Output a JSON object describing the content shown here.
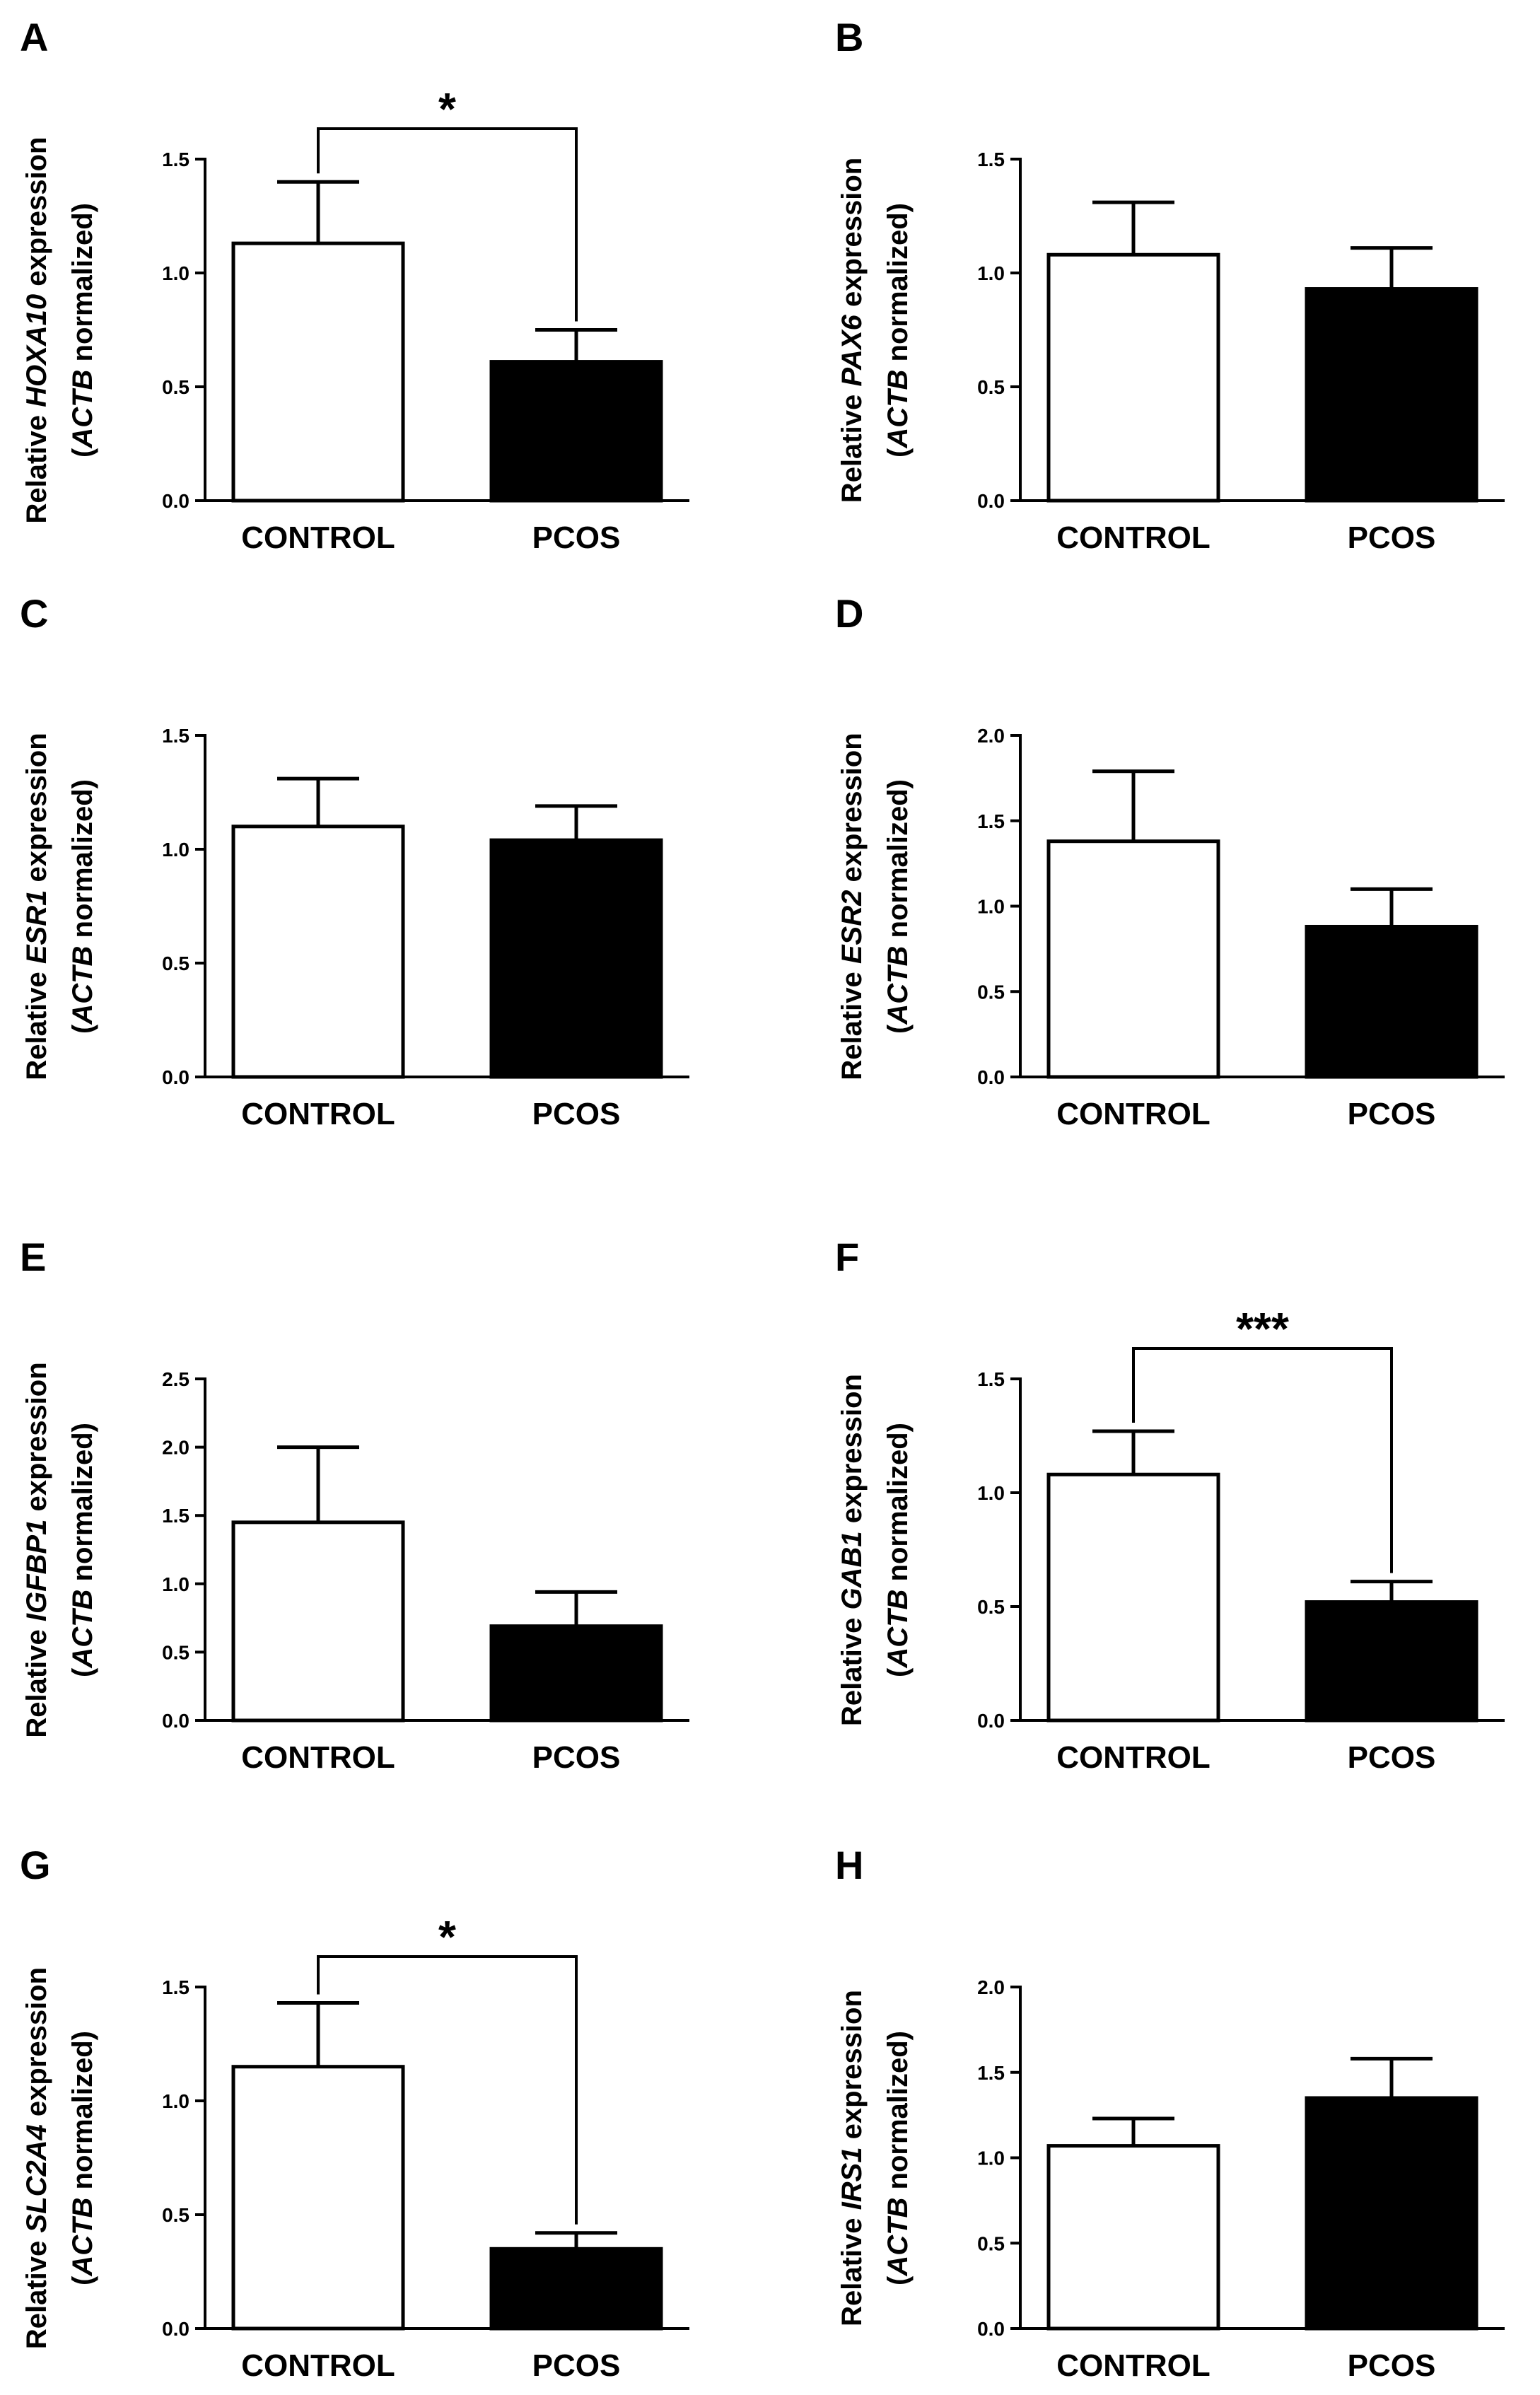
{
  "chart_data": [
    {
      "panel": "A",
      "type": "bar",
      "categories": [
        "CONTROL",
        "PCOS"
      ],
      "values": [
        1.13,
        0.61
      ],
      "errors": [
        0.27,
        0.14
      ],
      "fills": [
        "#ffffff",
        "#000000"
      ],
      "ylim": [
        0,
        1.5
      ],
      "yticks": [
        "0.0",
        "0.5",
        "1.0",
        "1.5"
      ],
      "ylabel_prefix": "Relative ",
      "ylabel_gene": "HOXA10",
      "ylabel_suffix": " expression",
      "ylabel2_open": "(",
      "ylabel2_gene": "ACTB",
      "ylabel2_rest": " normalized)",
      "significance": "*"
    },
    {
      "panel": "B",
      "type": "bar",
      "categories": [
        "CONTROL",
        "PCOS"
      ],
      "values": [
        1.08,
        0.93
      ],
      "errors": [
        0.23,
        0.18
      ],
      "fills": [
        "#ffffff",
        "#000000"
      ],
      "ylim": [
        0,
        1.5
      ],
      "yticks": [
        "0.0",
        "0.5",
        "1.0",
        "1.5"
      ],
      "ylabel_prefix": "Relative ",
      "ylabel_gene": "PAX6",
      "ylabel_suffix": " expression",
      "ylabel2_open": "(",
      "ylabel2_gene": "ACTB",
      "ylabel2_rest": " normalized)",
      "significance": ""
    },
    {
      "panel": "C",
      "type": "bar",
      "categories": [
        "CONTROL",
        "PCOS"
      ],
      "values": [
        1.1,
        1.04
      ],
      "errors": [
        0.21,
        0.15
      ],
      "fills": [
        "#ffffff",
        "#000000"
      ],
      "ylim": [
        0,
        1.5
      ],
      "yticks": [
        "0.0",
        "0.5",
        "1.0",
        "1.5"
      ],
      "ylabel_prefix": "Relative ",
      "ylabel_gene": "ESR1",
      "ylabel_suffix": " expression",
      "ylabel2_open": "(",
      "ylabel2_gene": "ACTB",
      "ylabel2_rest": " normalized)",
      "significance": ""
    },
    {
      "panel": "D",
      "type": "bar",
      "categories": [
        "CONTROL",
        "PCOS"
      ],
      "values": [
        1.38,
        0.88
      ],
      "errors": [
        0.41,
        0.22
      ],
      "fills": [
        "#ffffff",
        "#000000"
      ],
      "ylim": [
        0,
        2.0
      ],
      "yticks": [
        "0.0",
        "0.5",
        "1.0",
        "1.5",
        "2.0"
      ],
      "ylabel_prefix": "Relative ",
      "ylabel_gene": "ESR2",
      "ylabel_suffix": " expression",
      "ylabel2_open": "(",
      "ylabel2_gene": "ACTB",
      "ylabel2_rest": " normalized)",
      "significance": ""
    },
    {
      "panel": "E",
      "type": "bar",
      "categories": [
        "CONTROL",
        "PCOS"
      ],
      "values": [
        1.45,
        0.69
      ],
      "errors": [
        0.55,
        0.25
      ],
      "fills": [
        "#ffffff",
        "#000000"
      ],
      "ylim": [
        0,
        2.5
      ],
      "yticks": [
        "0.0",
        "0.5",
        "1.0",
        "1.5",
        "2.0",
        "2.5"
      ],
      "ylabel_prefix": "Relative ",
      "ylabel_gene": "IGFBP1",
      "ylabel_suffix": " expression",
      "ylabel2_open": "(",
      "ylabel2_gene": "ACTB",
      "ylabel2_rest": " normalized)",
      "significance": ""
    },
    {
      "panel": "F",
      "type": "bar",
      "categories": [
        "CONTROL",
        "PCOS"
      ],
      "values": [
        1.08,
        0.52
      ],
      "errors": [
        0.19,
        0.09
      ],
      "fills": [
        "#ffffff",
        "#000000"
      ],
      "ylim": [
        0,
        1.5
      ],
      "yticks": [
        "0.0",
        "0.5",
        "1.0",
        "1.5"
      ],
      "ylabel_prefix": "Relative ",
      "ylabel_gene": "GAB1",
      "ylabel_suffix": " expression",
      "ylabel2_open": "(",
      "ylabel2_gene": "ACTB",
      "ylabel2_rest": " normalized)",
      "significance": "***"
    },
    {
      "panel": "G",
      "type": "bar",
      "categories": [
        "CONTROL",
        "PCOS"
      ],
      "values": [
        1.15,
        0.35
      ],
      "errors": [
        0.28,
        0.07
      ],
      "fills": [
        "#ffffff",
        "#000000"
      ],
      "ylim": [
        0,
        1.5
      ],
      "yticks": [
        "0.0",
        "0.5",
        "1.0",
        "1.5"
      ],
      "ylabel_prefix": "Relative ",
      "ylabel_gene": "SLC2A4",
      "ylabel_suffix": " expression",
      "ylabel2_open": "(",
      "ylabel2_gene": "ACTB",
      "ylabel2_rest": " normalized)",
      "significance": "*"
    },
    {
      "panel": "H",
      "type": "bar",
      "categories": [
        "CONTROL",
        "PCOS"
      ],
      "values": [
        1.07,
        1.35
      ],
      "errors": [
        0.16,
        0.23
      ],
      "fills": [
        "#ffffff",
        "#000000"
      ],
      "ylim": [
        0,
        2.0
      ],
      "yticks": [
        "0.0",
        "0.5",
        "1.0",
        "1.5",
        "2.0"
      ],
      "ylabel_prefix": "Relative ",
      "ylabel_gene": "IRS1",
      "ylabel_suffix": " expression",
      "ylabel2_open": "(",
      "ylabel2_gene": "ACTB",
      "ylabel2_rest": " normalized)",
      "significance": ""
    }
  ]
}
